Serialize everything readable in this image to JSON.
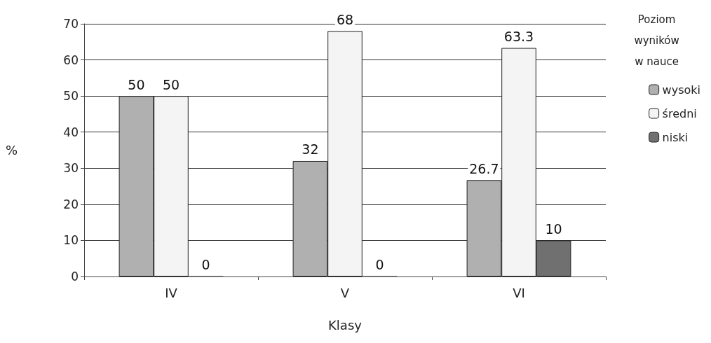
{
  "chart_data": {
    "type": "bar",
    "xlabel": "Klasy",
    "ylabel": "%",
    "legend_title": "Poziom\nwyników\nw nauce",
    "categories": [
      "IV",
      "V",
      "VI"
    ],
    "series": [
      {
        "name": "wysoki",
        "color": "#b0b0b0",
        "values": [
          50,
          32,
          26.7
        ]
      },
      {
        "name": "średni",
        "color": "#f4f4f4",
        "values": [
          50,
          68,
          63.3
        ]
      },
      {
        "name": "niski",
        "color": "#707070",
        "values": [
          0,
          0,
          10
        ]
      }
    ],
    "ylim": [
      0,
      70
    ],
    "yticks": [
      0,
      10,
      20,
      30,
      40,
      50,
      60,
      70
    ],
    "grid": "y",
    "legend": "right",
    "data_labels": true
  }
}
